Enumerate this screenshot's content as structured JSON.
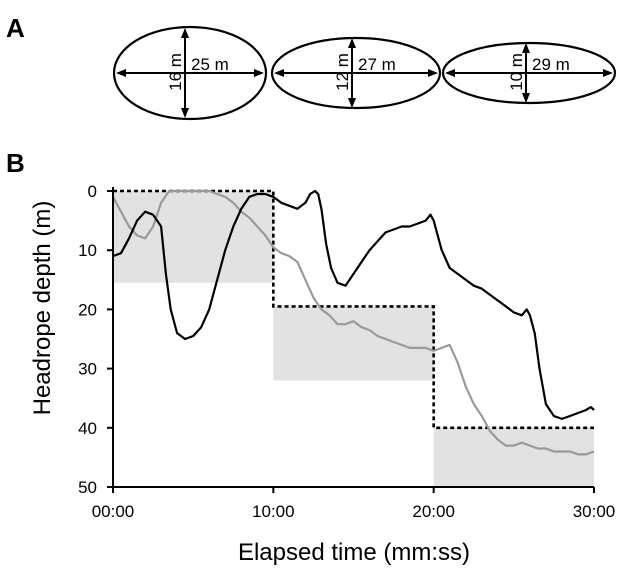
{
  "panel_a": {
    "letter": "A",
    "ellipses": [
      {
        "height_label": "16 m",
        "width_label": "25 m"
      },
      {
        "height_label": "12 m",
        "width_label": "27 m"
      },
      {
        "height_label": "10 m",
        "width_label": "29 m"
      }
    ]
  },
  "panel_b": {
    "letter": "B"
  },
  "chart_data": {
    "type": "line",
    "title": "",
    "xlabel": "Elapsed time (mm:ss)",
    "ylabel": "Headrope depth (m)",
    "x_unit": "minutes",
    "xlim": [
      0,
      30
    ],
    "ylim": [
      0,
      50
    ],
    "y_inverted": true,
    "x_ticks": [
      {
        "value": 0,
        "label": "00:00"
      },
      {
        "value": 10,
        "label": "10:00"
      },
      {
        "value": 20,
        "label": "20:00"
      },
      {
        "value": 30,
        "label": "30:00"
      }
    ],
    "y_ticks": [
      {
        "value": 0,
        "label": "0"
      },
      {
        "value": 10,
        "label": "10"
      },
      {
        "value": 20,
        "label": "20"
      },
      {
        "value": 30,
        "label": "30"
      },
      {
        "value": 40,
        "label": "40"
      },
      {
        "value": 50,
        "label": "50"
      }
    ],
    "grid": false,
    "shaded_regions": [
      {
        "x": [
          0,
          10
        ],
        "y": [
          0,
          15.5
        ],
        "color": "#e2e2e2"
      },
      {
        "x": [
          10,
          20
        ],
        "y": [
          19.5,
          32
        ],
        "color": "#e2e2e2"
      },
      {
        "x": [
          20,
          30
        ],
        "y": [
          40,
          50
        ],
        "color": "#e2e2e2"
      }
    ],
    "target_profile": {
      "style": "dotted",
      "color": "#000000",
      "points": [
        [
          0,
          0
        ],
        [
          10,
          0
        ],
        [
          10,
          19.5
        ],
        [
          20,
          19.5
        ],
        [
          20,
          40
        ],
        [
          30,
          40
        ]
      ]
    },
    "series": [
      {
        "color": "#000000",
        "x": [
          0,
          0.5,
          1,
          1.5,
          2,
          2.5,
          3,
          3.3,
          3.6,
          4,
          4.5,
          5,
          5.5,
          6,
          6.5,
          7,
          7.5,
          8,
          8.5,
          9,
          9.5,
          10,
          10.5,
          11,
          11.5,
          12,
          12.3,
          12.6,
          12.8,
          13,
          13.3,
          13.6,
          14,
          14.5,
          15,
          15.5,
          16,
          16.5,
          17,
          17.5,
          18,
          18.5,
          19,
          19.5,
          19.8,
          20,
          20.5,
          21,
          21.5,
          22,
          22.5,
          23,
          23.5,
          24,
          24.5,
          25,
          25.5,
          25.8,
          26,
          26.3,
          26.6,
          27,
          27.5,
          28,
          28.5,
          29,
          29.5,
          29.8,
          30
        ],
        "y": [
          11,
          10.5,
          8,
          5,
          3.5,
          4,
          6,
          14,
          20,
          24,
          25,
          24.5,
          23,
          20,
          15,
          10,
          6,
          3,
          1,
          0.5,
          0.5,
          1,
          2,
          2.5,
          3,
          2,
          0.5,
          0,
          0.5,
          3,
          9,
          13,
          15.5,
          16,
          14,
          12,
          10,
          8.5,
          7,
          6.5,
          6,
          6,
          5.5,
          5,
          4,
          5,
          10,
          13,
          14,
          15,
          16,
          16.5,
          17.5,
          18.5,
          19.5,
          20.5,
          21,
          20,
          21,
          24,
          30,
          36,
          38,
          38.5,
          38,
          37.5,
          37,
          36.5,
          37
        ]
      },
      {
        "color": "#9a9a9a",
        "x": [
          0,
          0.5,
          1,
          1.5,
          2,
          2.5,
          3,
          3.5,
          4,
          4.5,
          5,
          5.5,
          6,
          6.5,
          7,
          7.5,
          8,
          8.5,
          9,
          9.5,
          10,
          10.5,
          11,
          11.5,
          12,
          12.5,
          13,
          13.5,
          14,
          14.5,
          15,
          15.5,
          16,
          16.5,
          17,
          17.5,
          18,
          18.5,
          19,
          19.5,
          20,
          20.5,
          21,
          21.5,
          22,
          22.5,
          23,
          23.5,
          24,
          24.5,
          25,
          25.5,
          26,
          26.5,
          27,
          27.5,
          28,
          28.5,
          29,
          29.5,
          30
        ],
        "y": [
          1,
          3.5,
          6,
          7.5,
          8,
          6,
          2,
          0,
          0,
          0,
          0,
          0,
          0,
          0.5,
          1,
          2,
          3.5,
          4.5,
          6,
          7.5,
          9.5,
          10.5,
          11,
          12,
          15,
          18,
          20,
          21,
          22.5,
          22.5,
          22,
          23,
          23.5,
          24.5,
          25,
          25.5,
          26,
          26.5,
          26.5,
          26.5,
          27,
          26.5,
          26,
          29,
          33,
          36,
          38,
          40.5,
          42,
          43,
          43,
          42.5,
          43,
          43.5,
          43.5,
          44,
          44,
          44,
          44.5,
          44.5,
          44
        ]
      }
    ]
  }
}
